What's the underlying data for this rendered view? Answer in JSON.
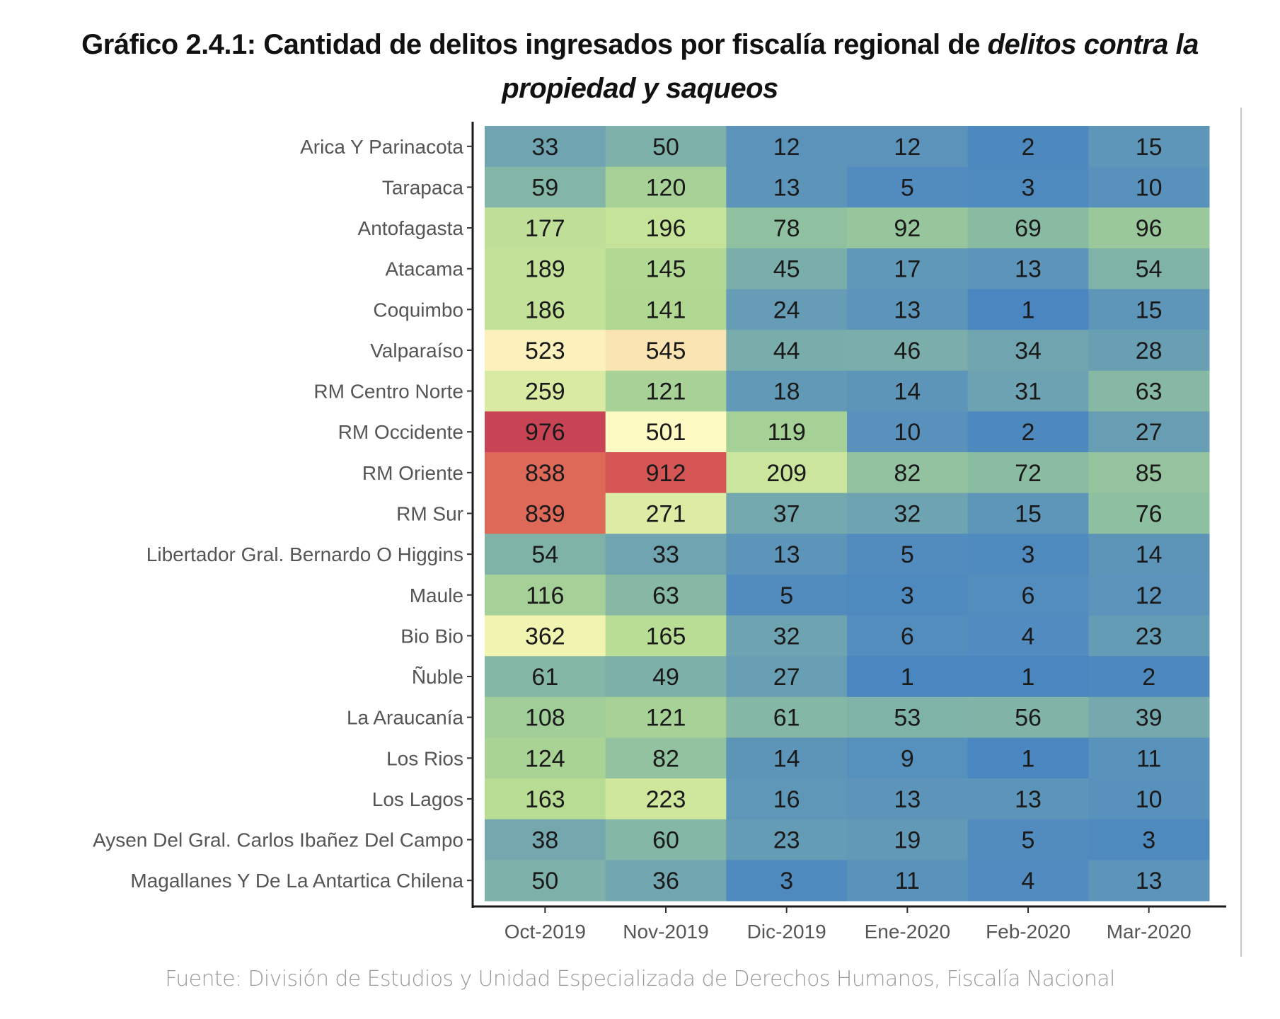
{
  "chart_data": {
    "type": "heatmap",
    "title_part1": "Gráfico 2.4.1: Cantidad de delitos ingresados por fiscalía regional de ",
    "title_italic1": "delitos contra la",
    "title_italic2": "propiedad y saqueos",
    "title": "Gráfico 2.4.1: Cantidad de delitos ingresados por fiscalía regional de delitos contra la propiedad y saqueos",
    "xlabel": "",
    "ylabel": "",
    "x": [
      "Oct-2019",
      "Nov-2019",
      "Dic-2019",
      "Ene-2020",
      "Feb-2020",
      "Mar-2020"
    ],
    "y": [
      "Arica Y Parinacota",
      "Tarapaca",
      "Antofagasta",
      "Atacama",
      "Coquimbo",
      "Valparaíso",
      "RM Centro Norte",
      "RM Occidente",
      "RM Oriente",
      "RM Sur",
      "Libertador Gral. Bernardo O Higgins",
      "Maule",
      "Bio Bio",
      "Ñuble",
      "La Araucanía",
      "Los Rios",
      "Los Lagos",
      "Aysen Del Gral. Carlos Ibañez Del Campo",
      "Magallanes Y De La Antartica Chilena"
    ],
    "values": [
      [
        33,
        50,
        12,
        12,
        2,
        15
      ],
      [
        59,
        120,
        13,
        5,
        3,
        10
      ],
      [
        177,
        196,
        78,
        92,
        69,
        96
      ],
      [
        189,
        145,
        45,
        17,
        13,
        54
      ],
      [
        186,
        141,
        24,
        13,
        1,
        15
      ],
      [
        523,
        545,
        44,
        46,
        34,
        28
      ],
      [
        259,
        121,
        18,
        14,
        31,
        63
      ],
      [
        976,
        501,
        119,
        10,
        2,
        27
      ],
      [
        838,
        912,
        209,
        82,
        72,
        85
      ],
      [
        839,
        271,
        37,
        32,
        15,
        76
      ],
      [
        54,
        33,
        13,
        5,
        3,
        14
      ],
      [
        116,
        63,
        5,
        3,
        6,
        12
      ],
      [
        362,
        165,
        32,
        6,
        4,
        23
      ],
      [
        61,
        49,
        27,
        1,
        1,
        2
      ],
      [
        108,
        121,
        61,
        53,
        56,
        39
      ],
      [
        124,
        82,
        14,
        9,
        1,
        11
      ],
      [
        163,
        223,
        16,
        13,
        13,
        10
      ],
      [
        38,
        60,
        23,
        19,
        5,
        3
      ],
      [
        50,
        36,
        3,
        11,
        4,
        13
      ]
    ],
    "color_scale": {
      "name": "Spectral (reversed)",
      "low_color": "#4a86c0",
      "mid_color": "#fefbc4",
      "high_color": "#c84455",
      "range": [
        1,
        976
      ]
    },
    "legend": "none",
    "grid": false
  },
  "source": "Fuente: División de Estudios y Unidad Especializada de Derechos Humanos, Fiscalía Nacional"
}
